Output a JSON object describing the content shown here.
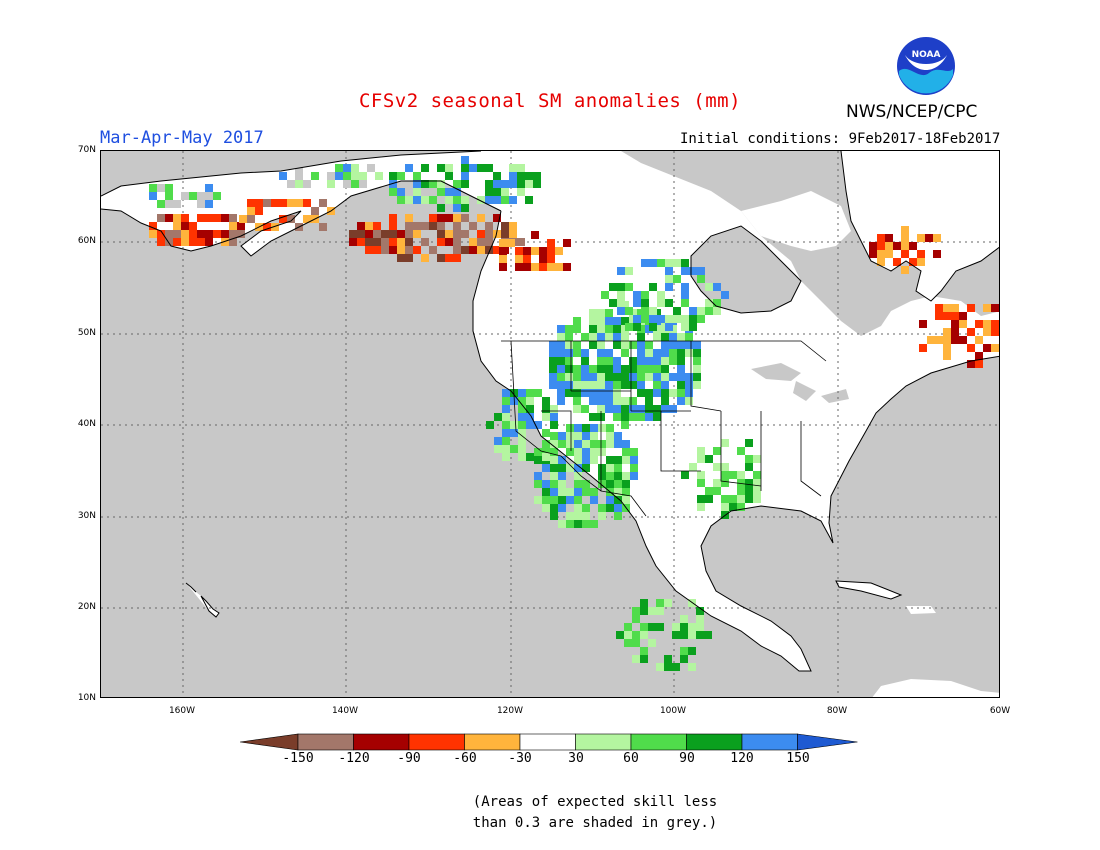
{
  "title": "CFSv2 seasonal SM anomalies (mm)",
  "agency": "NWS/NCEP/CPC",
  "logo_text": "NOAA",
  "season": "Mar-Apr-May 2017",
  "initial_conditions": "Initial conditions: 9Feb2017-18Feb2017",
  "lat_labels": [
    "70N",
    "60N",
    "50N",
    "40N",
    "30N",
    "20N",
    "10N"
  ],
  "lon_labels": [
    "160W",
    "140W",
    "120W",
    "100W",
    "80W",
    "60W"
  ],
  "colorbar": {
    "labels": [
      "-150",
      "-120",
      "-90",
      "-60",
      "-30",
      "30",
      "60",
      "90",
      "120",
      "150"
    ],
    "colors": [
      "#7a3d2a",
      "#a3776a",
      "#a50000",
      "#ff3300",
      "#ffb43c",
      "#ffffff",
      "#b4f5a0",
      "#50dc4b",
      "#0aa01e",
      "#3c8cf0",
      "#1e5ad2"
    ]
  },
  "colors": {
    "ocean": "#c8c8c8",
    "land": "#ffffff",
    "coast": "#000000",
    "title": "#e60000",
    "season": "#1f4fe0"
  },
  "note_line1": "(Areas of expected skill less",
  "note_line2": "than 0.3 are shaded in grey.)"
}
